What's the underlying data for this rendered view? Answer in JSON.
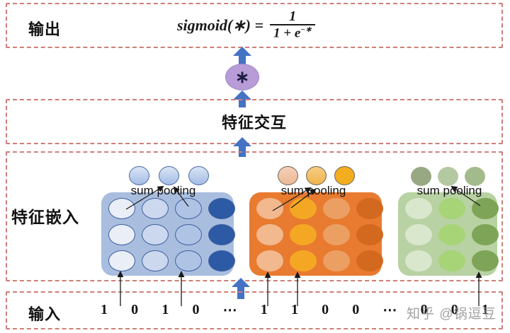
{
  "output": {
    "label": "输出",
    "formula": {
      "lhs": "sigmoid(∗) =",
      "numerator": "1",
      "denominator_base": "1 + e",
      "denominator_exponent": "−∗"
    }
  },
  "operator_symbol": "∗",
  "interaction": {
    "label": "特征交互"
  },
  "embedding": {
    "label": "特征嵌入",
    "fields": [
      {
        "id": "field1",
        "pooling_label": "sum pooling",
        "block_color": "#a9bedf",
        "cell_border": "#40609d",
        "rows": 3,
        "columns": [
          "#e9eef7",
          "#ccd8ee",
          "#afc4e5",
          "#2c5aa5"
        ],
        "pooled_circles": [
          {
            "fill": "linear-gradient(180deg,#dbe5f5,#a2bce4)",
            "border": "#4a6aa5"
          },
          {
            "fill": "linear-gradient(180deg,#dbe5f5,#a2bce4)",
            "border": "#4a6aa5"
          },
          {
            "fill": "linear-gradient(180deg,#dbe5f5,#a2bce4)",
            "border": "#4a6aa5"
          }
        ]
      },
      {
        "id": "field2",
        "pooling_label": "sum pooling",
        "block_color": "#e87b30",
        "cell_border": "",
        "rows": 3,
        "columns": [
          "#f2b88e",
          "#f4a723",
          "#ec9f63",
          "#d2691e"
        ],
        "pooled_circles": [
          {
            "fill": "linear-gradient(180deg,#f4d0ba,#edb994)",
            "border": "#6d6358"
          },
          {
            "fill": "linear-gradient(180deg,#f6cd85,#f0b44c)",
            "border": "#6d6358"
          },
          {
            "fill": "#f2ae1e",
            "border": "#6d6358"
          }
        ]
      },
      {
        "id": "field3",
        "pooling_label": "sum pooling",
        "block_color": "#b8d2a3",
        "cell_border": "",
        "rows": 3,
        "columns": [
          "#d9e7cc",
          "#a6d477",
          "#7ea557"
        ],
        "pooled_circles": [
          {
            "fill": "#97a883",
            "border": ""
          },
          {
            "fill": "#b4c8a2",
            "border": ""
          },
          {
            "fill": "#a3bb8c",
            "border": ""
          }
        ]
      }
    ]
  },
  "input": {
    "label": "输入",
    "digits": [
      "1",
      "0",
      "1",
      "0",
      "⋯",
      "1",
      "1",
      "0",
      "0",
      "⋯",
      "0",
      "0",
      "1"
    ]
  },
  "watermark": "知乎 @锅逗豆",
  "colors": {
    "arrow_blue": "#4472c4",
    "box_border": "#cf7f78",
    "operator_circle": "#b79cd8",
    "thin_arrow": "#1a1a1a"
  }
}
